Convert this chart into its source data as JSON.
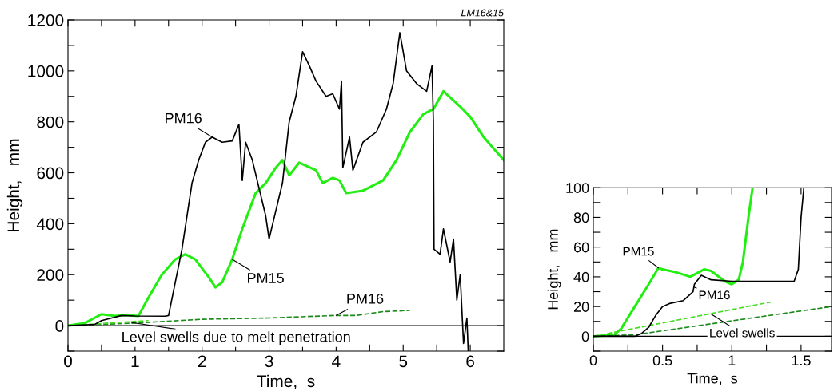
{
  "chart_data": [
    {
      "type": "line",
      "xlabel": "Time,  s",
      "ylabel": "Height,   mm",
      "xlim": [
        0,
        6.5
      ],
      "ylim": [
        -100,
        1200
      ],
      "xticks": [
        0,
        {
          "value": 0.5,
          "label": null
        },
        1,
        {
          "value": 1.5,
          "label": null
        },
        2,
        {
          "value": 2.5,
          "label": null
        },
        3,
        {
          "value": 3.5,
          "label": null
        },
        4,
        {
          "value": 4.5,
          "label": null
        },
        5,
        {
          "value": 5.5,
          "label": null
        },
        6
      ],
      "yticks": [
        {
          "value": -100,
          "label": null
        },
        0,
        {
          "value": 100,
          "label": null
        },
        200,
        {
          "value": 300,
          "label": null
        },
        400,
        {
          "value": 500,
          "label": null
        },
        600,
        {
          "value": 700,
          "label": null
        },
        800,
        {
          "value": 900,
          "label": null
        },
        1000,
        {
          "value": 1100,
          "label": null
        },
        1200
      ],
      "grid": false,
      "legend": false,
      "series": [
        {
          "color": "#000000",
          "line_style": "solid",
          "x": [
            0,
            0.4,
            0.5,
            0.8,
            1.0,
            1.45,
            1.5,
            1.7,
            1.85,
            1.95,
            2.05,
            2.15,
            2.3,
            2.45,
            2.55,
            2.6,
            2.65,
            2.75,
            2.85,
            2.95,
            3.0,
            3.1,
            3.2,
            3.3,
            3.4,
            3.5,
            3.6,
            3.7,
            3.85,
            3.95,
            4.05,
            4.08,
            4.1,
            4.2,
            4.25,
            4.4,
            4.6,
            4.75,
            4.85,
            4.95,
            5.05,
            5.2,
            5.35,
            5.43,
            5.45,
            5.46,
            5.55,
            5.6,
            5.7,
            5.75,
            5.8,
            5.85,
            5.9,
            5.95,
            5.97
          ],
          "values": [
            0,
            5,
            20,
            40,
            38,
            37,
            40,
            300,
            560,
            650,
            720,
            740,
            720,
            725,
            790,
            570,
            720,
            650,
            540,
            430,
            340,
            450,
            560,
            800,
            900,
            1075,
            1020,
            960,
            900,
            910,
            850,
            960,
            620,
            740,
            610,
            720,
            760,
            850,
            950,
            1150,
            1000,
            950,
            920,
            1020,
            800,
            300,
            280,
            380,
            250,
            340,
            100,
            200,
            -70,
            30,
            -100
          ]
        },
        {
          "color": "#22ee11",
          "line_style": "solid",
          "x": [
            0,
            0.25,
            0.5,
            0.7,
            0.85,
            1.05,
            1.2,
            1.4,
            1.6,
            1.75,
            1.9,
            2.1,
            2.2,
            2.3,
            2.45,
            2.6,
            2.8,
            2.95,
            3.1,
            3.2,
            3.3,
            3.45,
            3.7,
            3.8,
            3.95,
            4.05,
            4.15,
            4.4,
            4.7,
            4.9,
            5.1,
            5.3,
            5.45,
            5.6,
            5.85,
            6.0,
            6.2,
            6.3,
            6.5
          ],
          "values": [
            0,
            10,
            45,
            38,
            42,
            38,
            110,
            200,
            260,
            280,
            260,
            190,
            150,
            170,
            260,
            380,
            520,
            560,
            620,
            650,
            590,
            640,
            610,
            560,
            580,
            570,
            520,
            530,
            570,
            650,
            760,
            830,
            850,
            920,
            860,
            820,
            740,
            710,
            650
          ]
        },
        {
          "color": "#1a8a1a",
          "line_style": "dashed",
          "x": [
            0,
            1,
            2,
            3,
            4,
            4.3,
            4.7,
            5.1
          ],
          "values": [
            0,
            10,
            25,
            30,
            40,
            40,
            55,
            60
          ]
        },
        {
          "color": "#44dd22",
          "line_style": "dashed",
          "x": [
            0,
            1.2
          ],
          "values": [
            0,
            20
          ]
        }
      ],
      "ref_lines": [
        {
          "axis": "y",
          "value": 0,
          "color": "#000000",
          "line_style": "solid"
        }
      ],
      "annotations": [
        {
          "text": "PM16",
          "x": 2.15,
          "y": 740
        },
        {
          "text": "PM15",
          "x": 2.45,
          "y": 260
        },
        {
          "text": "PM16",
          "x": 4.0,
          "y": 40
        },
        {
          "text": "Level swells due to melt penetration",
          "x": 0.95,
          "y": 12
        },
        "LM16&15"
      ]
    },
    {
      "type": "line",
      "xlabel": "Time,  s",
      "ylabel": "Height,   mm",
      "xlim": [
        0,
        1.72
      ],
      "ylim": [
        -10,
        100
      ],
      "xticks": [
        0,
        {
          "value": 0.25,
          "label": null
        },
        0.5,
        {
          "value": 0.75,
          "label": null
        },
        1,
        {
          "value": 1.25,
          "label": null
        },
        1.5
      ],
      "yticks": [
        {
          "value": -10,
          "label": null
        },
        0,
        {
          "value": 10,
          "label": null
        },
        20,
        {
          "value": 30,
          "label": null
        },
        40,
        {
          "value": 50,
          "label": null
        },
        60,
        {
          "value": 70,
          "label": null
        },
        80,
        {
          "value": 90,
          "label": null
        },
        100
      ],
      "grid": false,
      "legend": false,
      "series": [
        {
          "color": "#000000",
          "line_style": "solid",
          "x": [
            0,
            0.3,
            0.35,
            0.4,
            0.45,
            0.5,
            0.55,
            0.65,
            0.72,
            0.73,
            0.78,
            0.85,
            1.0,
            1.2,
            1.45,
            1.48,
            1.5,
            1.52
          ],
          "values": [
            0,
            0,
            2,
            6,
            14,
            20,
            22,
            24,
            30,
            35,
            41,
            38,
            37,
            37,
            37,
            45,
            80,
            100
          ]
        },
        {
          "color": "#22ee11",
          "line_style": "solid",
          "x": [
            0,
            0.15,
            0.2,
            0.3,
            0.4,
            0.47,
            0.5,
            0.6,
            0.7,
            0.8,
            0.85,
            0.95,
            1.0,
            1.05,
            1.08,
            1.12,
            1.15
          ],
          "values": [
            0,
            1,
            5,
            20,
            35,
            46,
            45,
            43,
            40,
            45,
            44,
            37,
            35,
            38,
            50,
            80,
            100
          ]
        },
        {
          "color": "#1a8a1a",
          "line_style": "dashed",
          "x": [
            0,
            0.3,
            1.72
          ],
          "values": [
            0,
            1,
            20
          ]
        },
        {
          "color": "#44dd22",
          "line_style": "dashed",
          "x": [
            0,
            1.28
          ],
          "values": [
            0,
            23
          ]
        }
      ],
      "ref_lines": [
        {
          "axis": "y",
          "value": 0,
          "color": "#000000",
          "line_style": "solid"
        }
      ],
      "annotations": [
        {
          "text": "PM15",
          "x": 0.47,
          "y": 46
        },
        {
          "text": "PM16",
          "x": 0.73,
          "y": 33
        },
        {
          "text": "Level swells",
          "x": 0.85,
          "y": 15
        }
      ]
    }
  ]
}
